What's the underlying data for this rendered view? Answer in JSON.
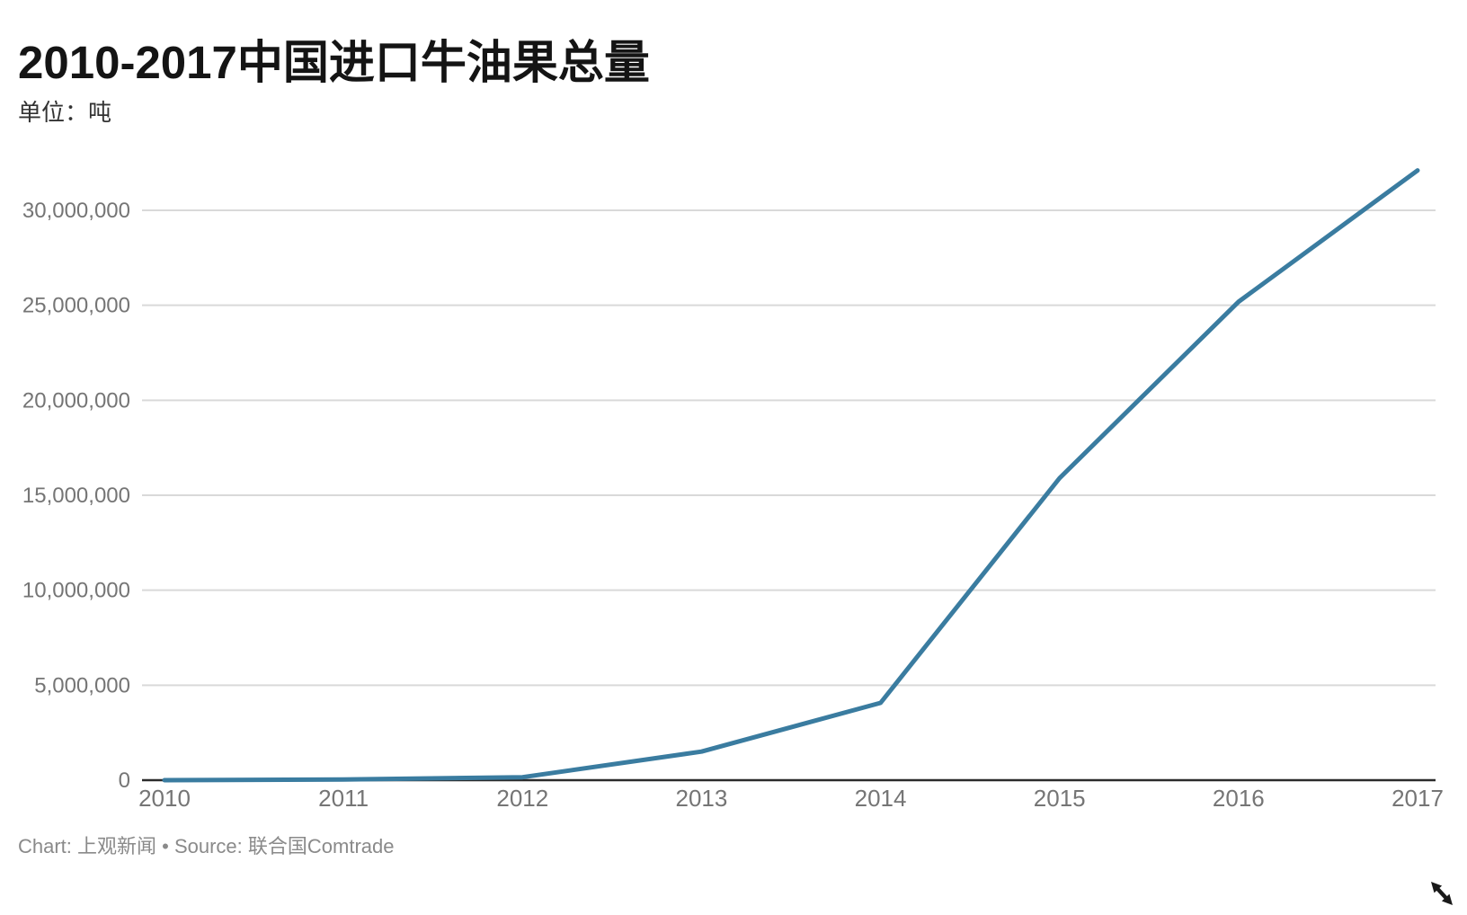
{
  "page": {
    "background": "#ffffff"
  },
  "header": {
    "title": "2010-2017中国进口牛油果总量",
    "unit_label": "单位：吨"
  },
  "footer": {
    "credit": "Chart: 上观新闻 • Source: 联合国Comtrade"
  },
  "icons": {
    "resize_cursor": "nwse-resize-arrow"
  },
  "chart_data": {
    "type": "line",
    "title": "2010-2017中国进口牛油果总量",
    "unit": "吨",
    "series_name": "中国进口牛油果总量",
    "x": [
      2010,
      2011,
      2012,
      2013,
      2014,
      2015,
      2016,
      2017
    ],
    "x_tick_labels": [
      "2010",
      "2011",
      "2012",
      "2013",
      "2014",
      "2015",
      "2016",
      "2017"
    ],
    "values": [
      1900,
      31800,
      154000,
      1504000,
      4068000,
      15898000,
      25189000,
      32100000
    ],
    "y_ticks": [
      0,
      5000000,
      10000000,
      15000000,
      20000000,
      25000000,
      30000000
    ],
    "y_tick_labels": [
      "0",
      "5,000,000",
      "10,000,000",
      "15,000,000",
      "20,000,000",
      "25,000,000",
      "30,000,000"
    ],
    "ylim": [
      0,
      32500000
    ],
    "grid": true,
    "legend": "none",
    "line_color": "#3a7ca0",
    "grid_color": "#d9d9d9",
    "axis_color": "#2b2b2b",
    "tick_label_color": "#757575"
  }
}
